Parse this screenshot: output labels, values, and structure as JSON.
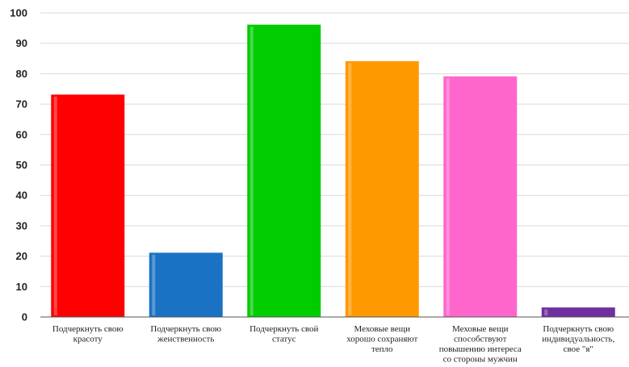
{
  "chart_data": {
    "type": "bar",
    "categories": [
      [
        "Подчеркнуть свою",
        "красоту"
      ],
      [
        "Подчеркнуть свою",
        "женственность"
      ],
      [
        "Подчеркнуть свой",
        "статус"
      ],
      [
        "Меховые вещи",
        "хорошо сохраняют",
        "тепло"
      ],
      [
        "Меховые вещи",
        "способствуют",
        "повышению интереса",
        "со стороны мужчин"
      ],
      [
        "Подчеркнуть свою",
        "индивидуальность,",
        "свое \"я\""
      ]
    ],
    "values": [
      73,
      21,
      96,
      84,
      79,
      3
    ],
    "colors": [
      "#ff0000",
      "#1a72c4",
      "#00cc00",
      "#ff9900",
      "#ff66cc",
      "#7030a0"
    ],
    "ylim": [
      0,
      100
    ],
    "yticks": [
      0,
      10,
      20,
      30,
      40,
      50,
      60,
      70,
      80,
      90,
      100
    ],
    "grid": true,
    "legend": "none"
  }
}
